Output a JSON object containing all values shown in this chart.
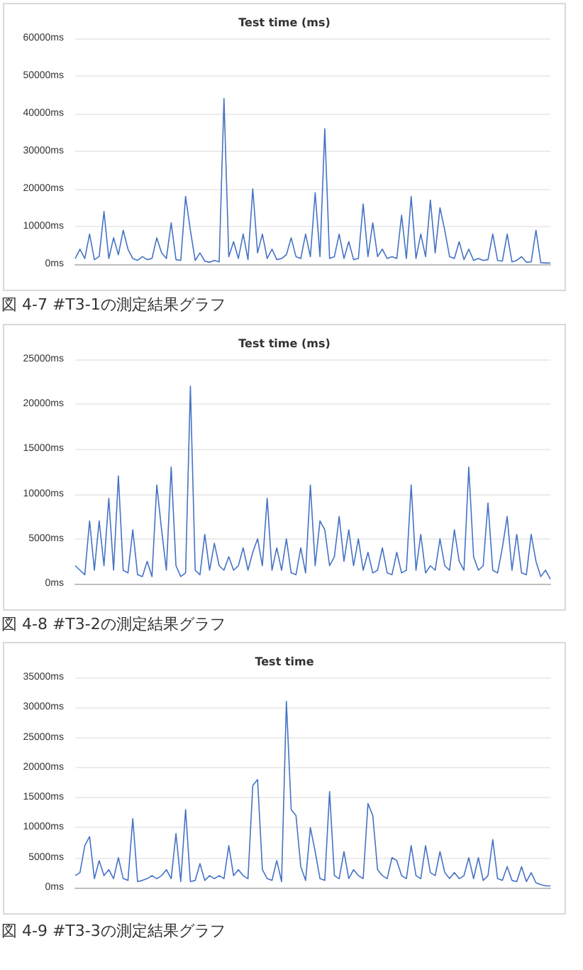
{
  "chart_data": [
    {
      "type": "line",
      "title": "Test time (ms)",
      "annotations": [
        "図 4-7 #T3-1の測定結果グラフ"
      ],
      "tick_labels": "y",
      "grid": "y",
      "categories": [
        null,
        null,
        null,
        null,
        null,
        null,
        null,
        null,
        null,
        null,
        null,
        null,
        null,
        null,
        null,
        null,
        null,
        null,
        null,
        null,
        null,
        null,
        null,
        null,
        null,
        null,
        null,
        null,
        null,
        null,
        null,
        null,
        null,
        null,
        null,
        null,
        null,
        null,
        null,
        null,
        null,
        null,
        null,
        null,
        null,
        null,
        null,
        null,
        null,
        null,
        null,
        null,
        null,
        null,
        null,
        null,
        null,
        null,
        null,
        null,
        null,
        null,
        null,
        null,
        null,
        null,
        null,
        null,
        null,
        null,
        null,
        null,
        null,
        null,
        null,
        null,
        null,
        null,
        null,
        null,
        null,
        null,
        null,
        null,
        null,
        null,
        null,
        null,
        null,
        null,
        null,
        null,
        null,
        null,
        null,
        null,
        null,
        null,
        null,
        null
      ],
      "ylim": [
        0,
        60000
      ],
      "yticks": [
        {
          "value": 0,
          "label": "0ms"
        },
        {
          "value": 10000,
          "label": "10000ms"
        },
        {
          "value": 20000,
          "label": "20000ms"
        },
        {
          "value": 30000,
          "label": "30000ms"
        },
        {
          "value": 40000,
          "label": "40000ms"
        },
        {
          "value": 50000,
          "label": "50000ms"
        },
        {
          "value": 60000,
          "label": "60000ms"
        }
      ],
      "series": [
        {
          "color": "#4472c4",
          "values": [
            1500,
            4000,
            1500,
            8000,
            1200,
            2000,
            14000,
            1500,
            7000,
            2500,
            9000,
            4000,
            1500,
            1000,
            2000,
            1200,
            1500,
            7000,
            3000,
            1500,
            11000,
            1200,
            1000,
            18000,
            9000,
            1000,
            3000,
            800,
            500,
            1000,
            600,
            44000,
            2000,
            6000,
            1500,
            8000,
            1200,
            20000,
            3000,
            8000,
            1500,
            4000,
            1200,
            1500,
            2500,
            7000,
            2000,
            1500,
            8000,
            2000,
            19000,
            2000,
            36000,
            1500,
            2000,
            8000,
            1500,
            6000,
            1200,
            1500,
            16000,
            2000,
            11000,
            2000,
            4000,
            1500,
            2000,
            1500,
            13000,
            1500,
            18000,
            1500,
            8000,
            2000,
            17000,
            3000,
            15000,
            9000,
            2000,
            1500,
            6000,
            1200,
            4000,
            1000,
            1500,
            1000,
            1200,
            8000,
            1000,
            800,
            8000,
            600,
            1000,
            2000,
            500,
            600,
            9000,
            400,
            300,
            300
          ]
        }
      ]
    },
    {
      "type": "line",
      "title": "Test time (ms)",
      "annotations": [
        "図 4-8 #T3-2の測定結果グラフ"
      ],
      "tick_labels": "y",
      "grid": "y",
      "categories": [
        null,
        null,
        null,
        null,
        null,
        null,
        null,
        null,
        null,
        null,
        null,
        null,
        null,
        null,
        null,
        null,
        null,
        null,
        null,
        null,
        null,
        null,
        null,
        null,
        null,
        null,
        null,
        null,
        null,
        null,
        null,
        null,
        null,
        null,
        null,
        null,
        null,
        null,
        null,
        null,
        null,
        null,
        null,
        null,
        null,
        null,
        null,
        null,
        null,
        null,
        null,
        null,
        null,
        null,
        null,
        null,
        null,
        null,
        null,
        null,
        null,
        null,
        null,
        null,
        null,
        null,
        null,
        null,
        null,
        null,
        null,
        null,
        null,
        null,
        null,
        null,
        null,
        null,
        null,
        null,
        null,
        null,
        null,
        null,
        null,
        null,
        null,
        null,
        null,
        null,
        null,
        null,
        null,
        null,
        null,
        null,
        null,
        null,
        null,
        null
      ],
      "ylim": [
        0,
        25000
      ],
      "yticks": [
        {
          "value": 0,
          "label": "0ms"
        },
        {
          "value": 5000,
          "label": "5000ms"
        },
        {
          "value": 10000,
          "label": "10000ms"
        },
        {
          "value": 15000,
          "label": "15000ms"
        },
        {
          "value": 20000,
          "label": "20000ms"
        },
        {
          "value": 25000,
          "label": "25000ms"
        }
      ],
      "series": [
        {
          "color": "#4472c4",
          "values": [
            2000,
            1500,
            1000,
            7000,
            1500,
            7000,
            2000,
            9500,
            1500,
            12000,
            1500,
            1200,
            6000,
            1000,
            800,
            2500,
            800,
            11000,
            6000,
            1500,
            13000,
            2000,
            800,
            1200,
            22000,
            1500,
            1000,
            5500,
            1500,
            4500,
            2000,
            1500,
            3000,
            1500,
            2000,
            4000,
            1500,
            3500,
            5000,
            2000,
            9500,
            1500,
            4000,
            1500,
            5000,
            1200,
            1000,
            4000,
            1200,
            11000,
            2000,
            7000,
            6000,
            2000,
            3000,
            7500,
            2500,
            6000,
            2000,
            5000,
            1500,
            3500,
            1200,
            1500,
            4000,
            1200,
            1000,
            3500,
            1200,
            1500,
            11000,
            1500,
            5500,
            1200,
            2000,
            1500,
            5000,
            2000,
            1500,
            6000,
            2500,
            1500,
            13000,
            3000,
            1500,
            2000,
            9000,
            1500,
            1200,
            4000,
            7500,
            1500,
            5500,
            1200,
            1000,
            5500,
            2500,
            800,
            1500,
            500
          ]
        }
      ]
    },
    {
      "type": "line",
      "title": "Test time",
      "annotations": [
        "図 4-9 #T3-3の測定結果グラフ"
      ],
      "tick_labels": "y",
      "grid": "y",
      "categories": [
        null,
        null,
        null,
        null,
        null,
        null,
        null,
        null,
        null,
        null,
        null,
        null,
        null,
        null,
        null,
        null,
        null,
        null,
        null,
        null,
        null,
        null,
        null,
        null,
        null,
        null,
        null,
        null,
        null,
        null,
        null,
        null,
        null,
        null,
        null,
        null,
        null,
        null,
        null,
        null,
        null,
        null,
        null,
        null,
        null,
        null,
        null,
        null,
        null,
        null,
        null,
        null,
        null,
        null,
        null,
        null,
        null,
        null,
        null,
        null,
        null,
        null,
        null,
        null,
        null,
        null,
        null,
        null,
        null,
        null,
        null,
        null,
        null,
        null,
        null,
        null,
        null,
        null,
        null,
        null,
        null,
        null,
        null,
        null,
        null,
        null,
        null,
        null,
        null,
        null,
        null,
        null,
        null,
        null,
        null,
        null,
        null,
        null,
        null,
        null
      ],
      "ylim": [
        0,
        35000
      ],
      "yticks": [
        {
          "value": 0,
          "label": "0ms"
        },
        {
          "value": 5000,
          "label": "5000ms"
        },
        {
          "value": 10000,
          "label": "10000ms"
        },
        {
          "value": 15000,
          "label": "15000ms"
        },
        {
          "value": 20000,
          "label": "20000ms"
        },
        {
          "value": 25000,
          "label": "25000ms"
        },
        {
          "value": 30000,
          "label": "30000ms"
        },
        {
          "value": 35000,
          "label": "35000ms"
        }
      ],
      "series": [
        {
          "color": "#4472c4",
          "values": [
            2000,
            2500,
            7000,
            8500,
            1500,
            4500,
            2000,
            3000,
            1500,
            5000,
            1500,
            1200,
            11500,
            1000,
            1200,
            1500,
            2000,
            1500,
            2000,
            3000,
            1500,
            9000,
            1000,
            13000,
            1000,
            1200,
            4000,
            1200,
            2000,
            1500,
            2000,
            1500,
            7000,
            2000,
            3000,
            2000,
            1500,
            17000,
            18000,
            3000,
            1500,
            1200,
            4500,
            1000,
            31000,
            13000,
            12000,
            3500,
            1200,
            10000,
            6000,
            1500,
            1200,
            16000,
            2000,
            1500,
            6000,
            1500,
            3000,
            2000,
            1500,
            14000,
            12000,
            3000,
            2000,
            1500,
            5000,
            4500,
            2000,
            1500,
            7000,
            2000,
            1500,
            7000,
            2500,
            2000,
            6000,
            2500,
            1500,
            2500,
            1500,
            2000,
            5000,
            1500,
            5000,
            1200,
            2000,
            8000,
            1500,
            1200,
            3500,
            1200,
            1000,
            3500,
            1000,
            2500,
            800,
            500,
            300,
            300
          ]
        }
      ]
    }
  ]
}
